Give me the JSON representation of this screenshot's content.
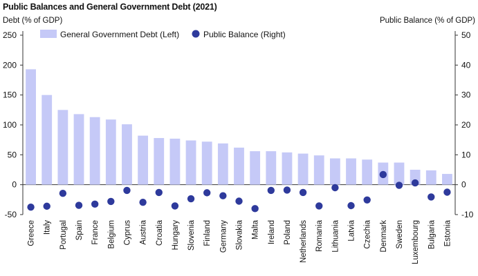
{
  "title": "Public Balances and General Government Debt (2021)",
  "left_axis_title": "Debt (% of GDP)",
  "right_axis_title": "Public Balance (% of GDP)",
  "colors": {
    "bar": "#c5c9f7",
    "dot": "#2e3a9c",
    "axis": "#333333"
  },
  "chart_data": {
    "type": "bar",
    "categories": [
      "Greece",
      "Italy",
      "Portugal",
      "Spain",
      "France",
      "Belgium",
      "Cyprus",
      "Austria",
      "Croatia",
      "Hungary",
      "Slovenia",
      "Finland",
      "Germany",
      "Slovakia",
      "Malta",
      "Ireland",
      "Poland",
      "Netherlands",
      "Romania",
      "Lithuania",
      "Latvia",
      "Czechia",
      "Denmark",
      "Sweden",
      "Luxembourg",
      "Bulgaria",
      "Estonia"
    ],
    "series": [
      {
        "name": "General Government Debt (Left)",
        "axis": "left",
        "kind": "bar",
        "values": [
          193,
          150,
          125,
          118,
          113,
          109,
          101,
          82,
          78,
          77,
          74,
          72,
          69,
          62,
          56,
          56,
          54,
          52,
          49,
          44,
          44,
          42,
          37,
          37,
          25,
          24,
          18
        ]
      },
      {
        "name": "Public Balance (Right)",
        "axis": "right",
        "kind": "scatter",
        "values": [
          -7.5,
          -7.2,
          -2.9,
          -6.9,
          -6.5,
          -5.6,
          -1.9,
          -5.9,
          -2.6,
          -7.1,
          -4.7,
          -2.7,
          -3.7,
          -5.5,
          -8.0,
          -1.9,
          -1.8,
          -2.6,
          -7.1,
          -1.0,
          -7.0,
          -5.1,
          3.4,
          -0.2,
          0.6,
          -4.1,
          -2.5
        ]
      }
    ],
    "left_axis": {
      "ylim": [
        -50,
        250
      ],
      "ticks": [
        -50,
        0,
        50,
        100,
        150,
        200,
        250
      ]
    },
    "right_axis": {
      "ylim": [
        -10,
        50
      ],
      "ticks": [
        -10,
        0,
        10,
        20,
        30,
        40,
        50
      ]
    },
    "legend": {
      "placement": "top-left"
    },
    "grid": false
  }
}
